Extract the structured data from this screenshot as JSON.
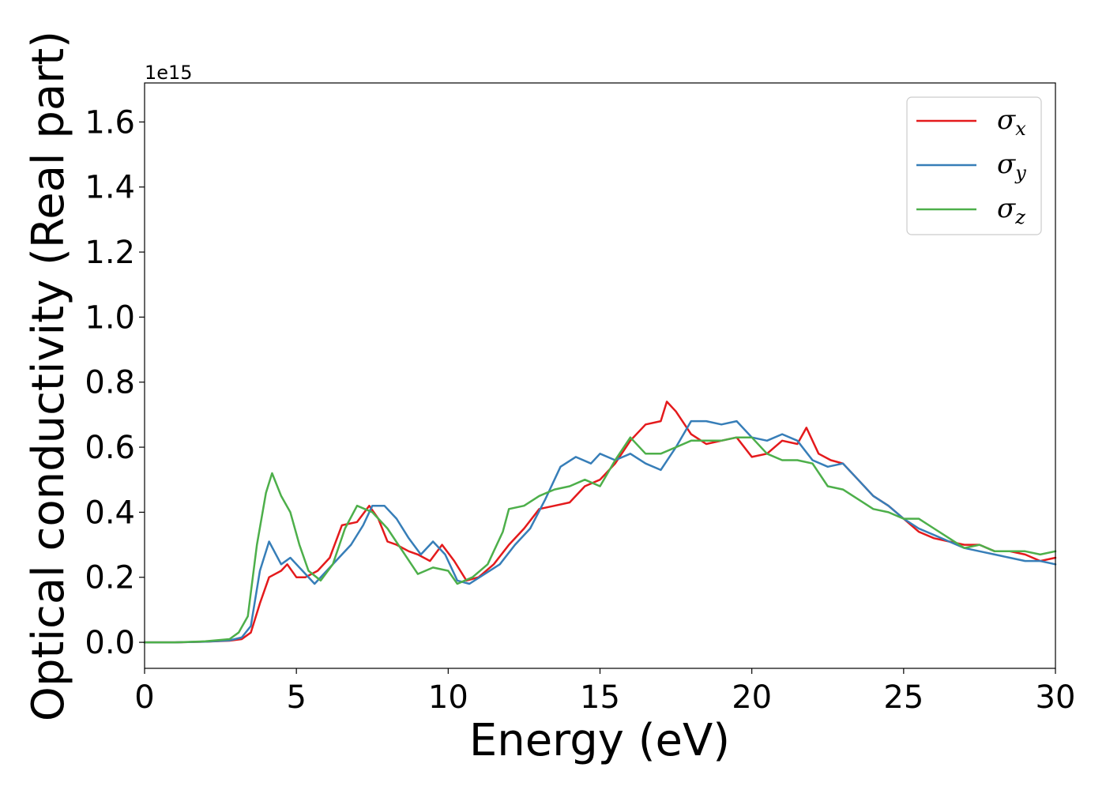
{
  "chart_data": {
    "type": "line",
    "xlabel": "Energy (eV)",
    "ylabel": "Optical conductivity (Real part)",
    "y_offset_label": "1e15",
    "xlim": [
      0,
      30
    ],
    "ylim": [
      -0.08,
      1.72
    ],
    "xticks": [
      0,
      5,
      10,
      15,
      20,
      25,
      30
    ],
    "xtick_labels": [
      "0",
      "5",
      "10",
      "15",
      "20",
      "25",
      "30"
    ],
    "yticks": [
      0.0,
      0.2,
      0.4,
      0.6,
      0.8,
      1.0,
      1.2,
      1.4,
      1.6
    ],
    "ytick_labels": [
      "0.0",
      "0.2",
      "0.4",
      "0.6",
      "0.8",
      "1.0",
      "1.2",
      "1.4",
      "1.6"
    ],
    "grid": false,
    "legend_position": "top-right",
    "series": [
      {
        "name": "σ",
        "subscript": "x",
        "color": "#e41a1c",
        "x": [
          0,
          1,
          2,
          2.8,
          3.2,
          3.5,
          3.8,
          4.1,
          4.5,
          4.7,
          5.0,
          5.3,
          5.7,
          6.1,
          6.5,
          7.0,
          7.4,
          7.7,
          8.0,
          8.3,
          8.7,
          9.0,
          9.4,
          9.8,
          10.2,
          10.6,
          11.0,
          11.5,
          12.0,
          12.5,
          13.0,
          13.5,
          14.0,
          14.5,
          15.0,
          15.5,
          16.0,
          16.5,
          17.0,
          17.2,
          17.5,
          18.0,
          18.5,
          19.0,
          19.5,
          20.0,
          20.5,
          21.0,
          21.5,
          21.8,
          22.2,
          22.6,
          23.0,
          23.5,
          24.0,
          24.5,
          25.0,
          25.5,
          26.0,
          26.5,
          27.0,
          27.5,
          28.0,
          28.5,
          29.0,
          29.5,
          30.0
        ],
        "y": [
          0.0,
          0.0,
          0.002,
          0.005,
          0.01,
          0.03,
          0.12,
          0.2,
          0.22,
          0.24,
          0.2,
          0.2,
          0.22,
          0.26,
          0.36,
          0.37,
          0.42,
          0.38,
          0.31,
          0.3,
          0.28,
          0.27,
          0.25,
          0.3,
          0.25,
          0.19,
          0.2,
          0.24,
          0.3,
          0.35,
          0.41,
          0.42,
          0.43,
          0.48,
          0.5,
          0.55,
          0.62,
          0.67,
          0.68,
          0.74,
          0.71,
          0.64,
          0.61,
          0.62,
          0.63,
          0.57,
          0.58,
          0.62,
          0.61,
          0.66,
          0.58,
          0.56,
          0.55,
          0.5,
          0.45,
          0.42,
          0.38,
          0.34,
          0.32,
          0.31,
          0.3,
          0.3,
          0.28,
          0.28,
          0.27,
          0.25,
          0.26
        ]
      },
      {
        "name": "σ",
        "subscript": "y",
        "color": "#377eb8",
        "x": [
          0,
          1,
          2,
          2.8,
          3.2,
          3.5,
          3.8,
          4.1,
          4.5,
          4.8,
          5.2,
          5.6,
          6.0,
          6.4,
          6.8,
          7.2,
          7.5,
          7.9,
          8.3,
          8.7,
          9.1,
          9.5,
          9.9,
          10.3,
          10.7,
          11.2,
          11.7,
          12.2,
          12.7,
          13.2,
          13.7,
          14.2,
          14.7,
          15.0,
          15.5,
          16.0,
          16.5,
          17.0,
          17.5,
          18.0,
          18.5,
          19.0,
          19.5,
          20.0,
          20.5,
          21.0,
          21.5,
          22.0,
          22.5,
          23.0,
          23.5,
          24.0,
          24.5,
          25.0,
          25.5,
          26.0,
          26.5,
          27.0,
          27.5,
          28.0,
          28.5,
          29.0,
          29.5,
          30.0
        ],
        "y": [
          0.0,
          0.0,
          0.002,
          0.006,
          0.015,
          0.05,
          0.22,
          0.31,
          0.24,
          0.26,
          0.22,
          0.18,
          0.22,
          0.26,
          0.3,
          0.36,
          0.42,
          0.42,
          0.38,
          0.32,
          0.27,
          0.31,
          0.27,
          0.19,
          0.18,
          0.21,
          0.24,
          0.3,
          0.35,
          0.44,
          0.54,
          0.57,
          0.55,
          0.58,
          0.56,
          0.58,
          0.55,
          0.53,
          0.6,
          0.68,
          0.68,
          0.67,
          0.68,
          0.63,
          0.62,
          0.64,
          0.62,
          0.56,
          0.54,
          0.55,
          0.5,
          0.45,
          0.42,
          0.38,
          0.35,
          0.33,
          0.31,
          0.29,
          0.28,
          0.27,
          0.26,
          0.25,
          0.25,
          0.24
        ]
      },
      {
        "name": "σ",
        "subscript": "z",
        "color": "#4daf4a",
        "x": [
          0,
          1,
          2,
          2.8,
          3.1,
          3.4,
          3.7,
          4.0,
          4.2,
          4.5,
          4.8,
          5.1,
          5.4,
          5.8,
          6.2,
          6.6,
          7.0,
          7.5,
          8.0,
          8.5,
          9.0,
          9.5,
          10.0,
          10.3,
          10.8,
          11.3,
          11.8,
          12.0,
          12.5,
          13.0,
          13.5,
          14.0,
          14.5,
          15.0,
          15.5,
          16.0,
          16.5,
          17.0,
          17.5,
          18.0,
          18.5,
          19.0,
          19.5,
          20.0,
          20.5,
          21.0,
          21.5,
          22.0,
          22.5,
          23.0,
          23.5,
          24.0,
          24.5,
          25.0,
          25.5,
          26.0,
          26.5,
          27.0,
          27.5,
          28.0,
          28.5,
          29.0,
          29.5,
          30.0
        ],
        "y": [
          0.0,
          0.0,
          0.003,
          0.01,
          0.03,
          0.08,
          0.3,
          0.46,
          0.52,
          0.45,
          0.4,
          0.3,
          0.22,
          0.19,
          0.24,
          0.35,
          0.42,
          0.4,
          0.35,
          0.28,
          0.21,
          0.23,
          0.22,
          0.18,
          0.2,
          0.24,
          0.34,
          0.41,
          0.42,
          0.45,
          0.47,
          0.48,
          0.5,
          0.48,
          0.56,
          0.63,
          0.58,
          0.58,
          0.6,
          0.62,
          0.62,
          0.62,
          0.63,
          0.63,
          0.58,
          0.56,
          0.56,
          0.55,
          0.48,
          0.47,
          0.44,
          0.41,
          0.4,
          0.38,
          0.38,
          0.35,
          0.32,
          0.29,
          0.3,
          0.28,
          0.28,
          0.28,
          0.27,
          0.28
        ]
      }
    ]
  }
}
